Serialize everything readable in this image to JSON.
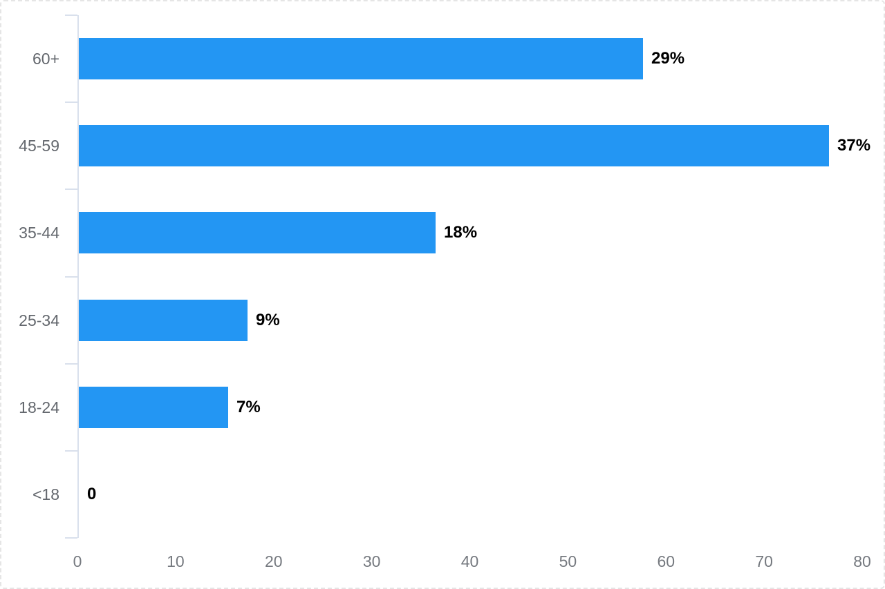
{
  "chart_data": {
    "type": "bar",
    "orientation": "horizontal",
    "title": "",
    "xlabel": "",
    "ylabel": "",
    "categories": [
      "60+",
      "45-59",
      "35-44",
      "25-34",
      "18-24",
      "<18"
    ],
    "values": [
      57.5,
      76.5,
      36.4,
      17.2,
      15.2,
      0
    ],
    "data_labels": [
      "29%",
      "37%",
      "18%",
      "9%",
      "7%",
      "0"
    ],
    "x_ticks": [
      "0",
      "10",
      "20",
      "30",
      "40",
      "50",
      "60",
      "70",
      "80"
    ],
    "x_tick_values": [
      0,
      10,
      20,
      30,
      40,
      50,
      60,
      70,
      80
    ],
    "xlim": [
      0,
      80
    ],
    "grid": false,
    "legend": "none",
    "colors": {
      "bar": "#2396f3",
      "axis_line": "#d9e0ec",
      "category_label": "#63676d",
      "tick_label": "#75797f",
      "data_label": "#000000",
      "card_border": "#e5e5e5"
    }
  }
}
